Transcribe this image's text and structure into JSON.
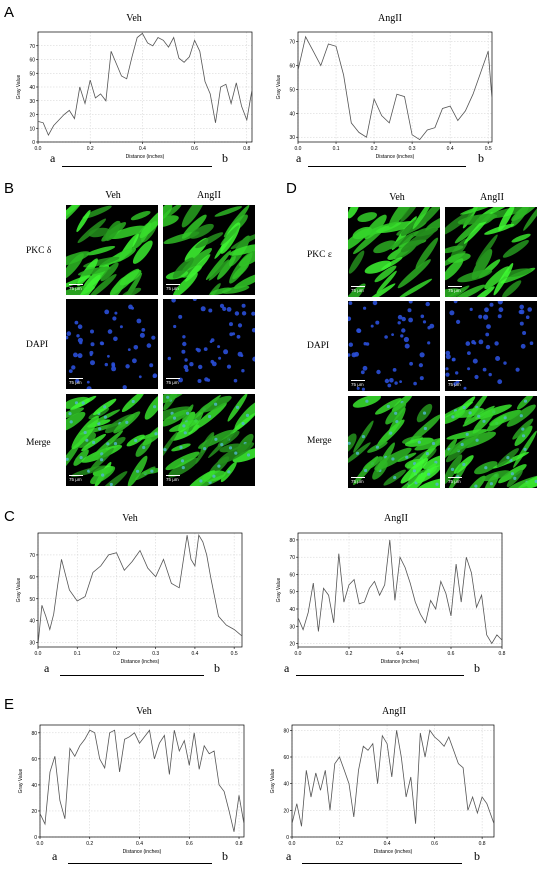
{
  "panels": {
    "A": {
      "letter": "A",
      "left_title": "Veh",
      "right_title": "AngII",
      "a_label": "a",
      "b_label": "b"
    },
    "B": {
      "letter": "B",
      "col1": "Veh",
      "col2": "AngII",
      "row1": "PKC δ",
      "row2": "DAPI",
      "row3": "Merge",
      "scale_bar": "75 μm"
    },
    "D": {
      "letter": "D",
      "col1": "Veh",
      "col2": "AngII",
      "row1": "PKC ε",
      "row2": "DAPI",
      "row3": "Merge",
      "scale_bar": "75 μm"
    },
    "C": {
      "letter": "C",
      "left_title": "Veh",
      "right_title": "AngII",
      "a_label": "a",
      "b_label": "b"
    },
    "E": {
      "letter": "E",
      "left_title": "Veh",
      "right_title": "AngII",
      "a_label": "a",
      "b_label": "b"
    }
  },
  "chart_data": [
    {
      "id": "A-veh",
      "type": "line",
      "title": "Veh",
      "xlabel": "Distance (inches)",
      "ylabel": "Gray Value",
      "xlim": [
        0,
        0.82
      ],
      "ylim": [
        0,
        80
      ],
      "xticks": [
        0.0,
        0.2,
        0.4,
        0.6,
        0.8
      ],
      "yticks": [
        0,
        10,
        20,
        30,
        40,
        50,
        60,
        70
      ],
      "x": [
        0,
        0.02,
        0.04,
        0.06,
        0.08,
        0.1,
        0.12,
        0.14,
        0.16,
        0.18,
        0.2,
        0.22,
        0.24,
        0.26,
        0.28,
        0.3,
        0.32,
        0.34,
        0.36,
        0.38,
        0.4,
        0.42,
        0.44,
        0.46,
        0.48,
        0.5,
        0.52,
        0.54,
        0.56,
        0.58,
        0.6,
        0.62,
        0.64,
        0.66,
        0.68,
        0.7,
        0.72,
        0.74,
        0.76,
        0.78,
        0.8,
        0.82
      ],
      "y": [
        15,
        14,
        5,
        12,
        16,
        20,
        23,
        17,
        40,
        28,
        45,
        32,
        35,
        30,
        66,
        57,
        48,
        46,
        62,
        76,
        79,
        72,
        70,
        76,
        74,
        69,
        76,
        61,
        58,
        62,
        74,
        66,
        44,
        35,
        14,
        40,
        42,
        28,
        43,
        26,
        16,
        38
      ]
    },
    {
      "id": "A-ang",
      "type": "line",
      "title": "AngII",
      "xlabel": "Distance (inches)",
      "ylabel": "Gray Value",
      "xlim": [
        0,
        0.51
      ],
      "ylim": [
        28,
        74
      ],
      "xticks": [
        0.0,
        0.1,
        0.2,
        0.3,
        0.4,
        0.5
      ],
      "yticks": [
        30,
        40,
        50,
        60,
        70
      ],
      "x": [
        0,
        0.02,
        0.04,
        0.06,
        0.08,
        0.1,
        0.12,
        0.14,
        0.16,
        0.18,
        0.2,
        0.22,
        0.24,
        0.26,
        0.28,
        0.3,
        0.32,
        0.34,
        0.36,
        0.38,
        0.4,
        0.42,
        0.44,
        0.46,
        0.48,
        0.5,
        0.51
      ],
      "y": [
        58,
        72,
        66,
        60,
        69,
        68,
        56,
        36,
        32,
        30,
        46,
        39,
        36,
        48,
        47,
        31,
        29,
        33,
        34,
        42,
        43,
        37,
        41,
        48,
        57,
        66,
        46
      ]
    },
    {
      "id": "C-veh",
      "type": "line",
      "title": "Veh",
      "xlabel": "Distance (inches)",
      "ylabel": "Gray Value",
      "xlim": [
        0,
        0.52
      ],
      "ylim": [
        28,
        80
      ],
      "xticks": [
        0.0,
        0.1,
        0.2,
        0.3,
        0.4,
        0.5
      ],
      "yticks": [
        30,
        40,
        50,
        60,
        70
      ],
      "x": [
        0,
        0.01,
        0.02,
        0.03,
        0.04,
        0.05,
        0.06,
        0.08,
        0.1,
        0.12,
        0.14,
        0.16,
        0.18,
        0.2,
        0.22,
        0.24,
        0.26,
        0.28,
        0.3,
        0.32,
        0.34,
        0.36,
        0.38,
        0.39,
        0.4,
        0.41,
        0.42,
        0.43,
        0.44,
        0.46,
        0.48,
        0.5,
        0.52
      ],
      "y": [
        29,
        47,
        42,
        36,
        43,
        56,
        68,
        54,
        49,
        51,
        62,
        65,
        70,
        71,
        63,
        67,
        72,
        64,
        60,
        68,
        57,
        55,
        79,
        68,
        65,
        79,
        76,
        70,
        60,
        42,
        38,
        36,
        33
      ]
    },
    {
      "id": "C-ang",
      "type": "line",
      "title": "AngII",
      "xlabel": "Distance (inches)",
      "ylabel": "Gray Value",
      "xlim": [
        0,
        0.8
      ],
      "ylim": [
        18,
        84
      ],
      "xticks": [
        0.0,
        0.2,
        0.4,
        0.6,
        0.8
      ],
      "yticks": [
        20,
        30,
        40,
        50,
        60,
        70,
        80
      ],
      "x": [
        0,
        0.02,
        0.04,
        0.06,
        0.08,
        0.1,
        0.12,
        0.14,
        0.16,
        0.18,
        0.2,
        0.22,
        0.24,
        0.26,
        0.28,
        0.3,
        0.32,
        0.34,
        0.36,
        0.38,
        0.4,
        0.42,
        0.44,
        0.46,
        0.48,
        0.5,
        0.52,
        0.54,
        0.56,
        0.58,
        0.6,
        0.62,
        0.64,
        0.66,
        0.68,
        0.7,
        0.72,
        0.74,
        0.76,
        0.78,
        0.8
      ],
      "y": [
        35,
        28,
        38,
        55,
        27,
        52,
        48,
        32,
        72,
        44,
        54,
        57,
        43,
        44,
        52,
        56,
        48,
        54,
        80,
        45,
        70,
        64,
        55,
        44,
        37,
        32,
        45,
        40,
        56,
        49,
        36,
        66,
        44,
        70,
        61,
        41,
        48,
        25,
        20,
        25,
        22
      ]
    },
    {
      "id": "E-veh",
      "type": "line",
      "title": "Veh",
      "xlabel": "Distance (inches)",
      "ylabel": "Gray Value",
      "xlim": [
        0,
        0.82
      ],
      "ylim": [
        0,
        86
      ],
      "xticks": [
        0.0,
        0.2,
        0.4,
        0.6,
        0.8
      ],
      "yticks": [
        0,
        20,
        40,
        60,
        80
      ],
      "x": [
        0,
        0.02,
        0.04,
        0.06,
        0.08,
        0.1,
        0.12,
        0.14,
        0.16,
        0.18,
        0.2,
        0.22,
        0.24,
        0.26,
        0.28,
        0.3,
        0.32,
        0.34,
        0.36,
        0.38,
        0.4,
        0.42,
        0.44,
        0.46,
        0.48,
        0.5,
        0.52,
        0.54,
        0.56,
        0.58,
        0.6,
        0.62,
        0.64,
        0.66,
        0.68,
        0.7,
        0.72,
        0.74,
        0.76,
        0.78,
        0.8,
        0.82
      ],
      "y": [
        18,
        10,
        50,
        62,
        28,
        14,
        68,
        62,
        70,
        75,
        82,
        80,
        60,
        53,
        80,
        82,
        50,
        75,
        77,
        80,
        72,
        77,
        82,
        60,
        72,
        78,
        48,
        82,
        66,
        74,
        55,
        80,
        52,
        70,
        64,
        66,
        40,
        35,
        20,
        4,
        32,
        10
      ]
    },
    {
      "id": "E-ang",
      "type": "line",
      "title": "AngII",
      "xlabel": "Distance (inches)",
      "ylabel": "Gray Value",
      "xlim": [
        0,
        0.85
      ],
      "ylim": [
        0,
        84
      ],
      "xticks": [
        0.0,
        0.2,
        0.4,
        0.6,
        0.8
      ],
      "yticks": [
        0,
        20,
        40,
        60,
        80
      ],
      "x": [
        0,
        0.02,
        0.04,
        0.06,
        0.08,
        0.1,
        0.12,
        0.14,
        0.16,
        0.18,
        0.2,
        0.22,
        0.24,
        0.26,
        0.28,
        0.3,
        0.32,
        0.34,
        0.36,
        0.38,
        0.4,
        0.42,
        0.44,
        0.46,
        0.48,
        0.5,
        0.52,
        0.54,
        0.56,
        0.58,
        0.6,
        0.62,
        0.64,
        0.66,
        0.68,
        0.7,
        0.72,
        0.74,
        0.76,
        0.78,
        0.8,
        0.82,
        0.85
      ],
      "y": [
        10,
        25,
        8,
        50,
        30,
        48,
        35,
        50,
        20,
        55,
        60,
        50,
        40,
        15,
        50,
        68,
        65,
        70,
        40,
        76,
        70,
        45,
        80,
        60,
        30,
        45,
        10,
        78,
        60,
        80,
        75,
        72,
        68,
        75,
        65,
        55,
        52,
        20,
        30,
        18,
        30,
        25,
        10
      ]
    }
  ]
}
